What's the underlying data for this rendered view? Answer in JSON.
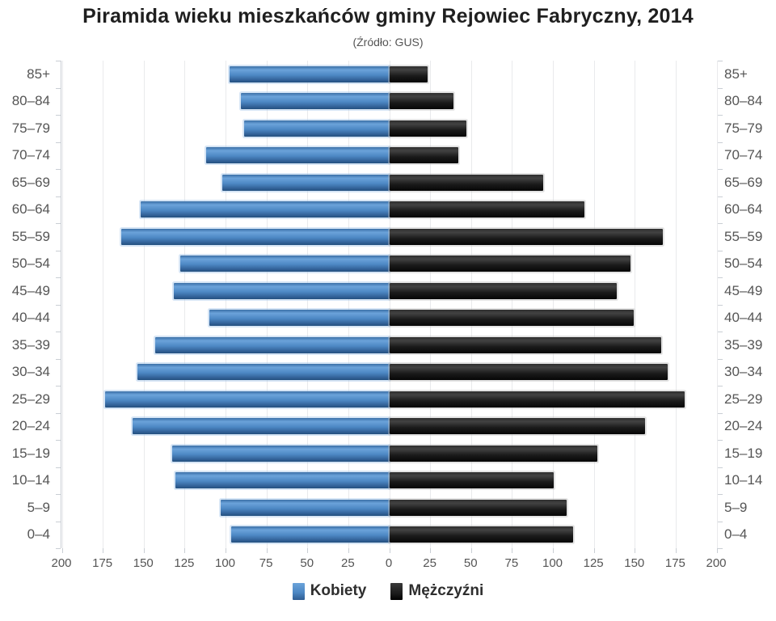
{
  "header": {
    "title": "Piramida wieku mieszkańców gminy Rejowiec Fabryczny, 2014",
    "subtitle": "(Źródło: GUS)"
  },
  "legend": {
    "women_label": "Kobiety",
    "men_label": "Mężczyźni"
  },
  "colors": {
    "women_bar": "#4d88c4",
    "men_bar": "#1a1a1a",
    "grid": "#e9eaec",
    "axis": "#c9ced4",
    "label_text": "#555555"
  },
  "chart_data": {
    "type": "bar",
    "variant": "population-pyramid",
    "title": "Piramida wieku mieszkańców gminy Rejowiec Fabryczny, 2014",
    "subtitle": "(Źródło: GUS)",
    "grid": true,
    "legend_position": "bottom",
    "categories_top_to_bottom": [
      "85+",
      "80–84",
      "75–79",
      "70–74",
      "65–69",
      "60–64",
      "55–59",
      "50–54",
      "45–49",
      "40–44",
      "35–39",
      "30–34",
      "25–29",
      "20–24",
      "15–19",
      "10–14",
      "5–9",
      "0–4"
    ],
    "series": [
      {
        "name": "Kobiety",
        "side": "left",
        "color": "#4d88c4",
        "values": [
          98,
          91,
          89,
          112,
          102,
          152,
          164,
          128,
          132,
          110,
          143,
          154,
          174,
          157,
          133,
          131,
          103,
          97
        ]
      },
      {
        "name": "Mężczyźni",
        "side": "right",
        "color": "#1a1a1a",
        "values": [
          23,
          39,
          47,
          42,
          94,
          119,
          167,
          147,
          139,
          149,
          166,
          170,
          180,
          156,
          127,
          100,
          108,
          112
        ]
      }
    ],
    "x_axis": {
      "max": 200,
      "tick_step": 25,
      "ticks": [
        "200",
        "175",
        "150",
        "125",
        "100",
        "75",
        "50",
        "25",
        "0",
        "25",
        "50",
        "75",
        "100",
        "125",
        "150",
        "175",
        "200"
      ]
    }
  }
}
